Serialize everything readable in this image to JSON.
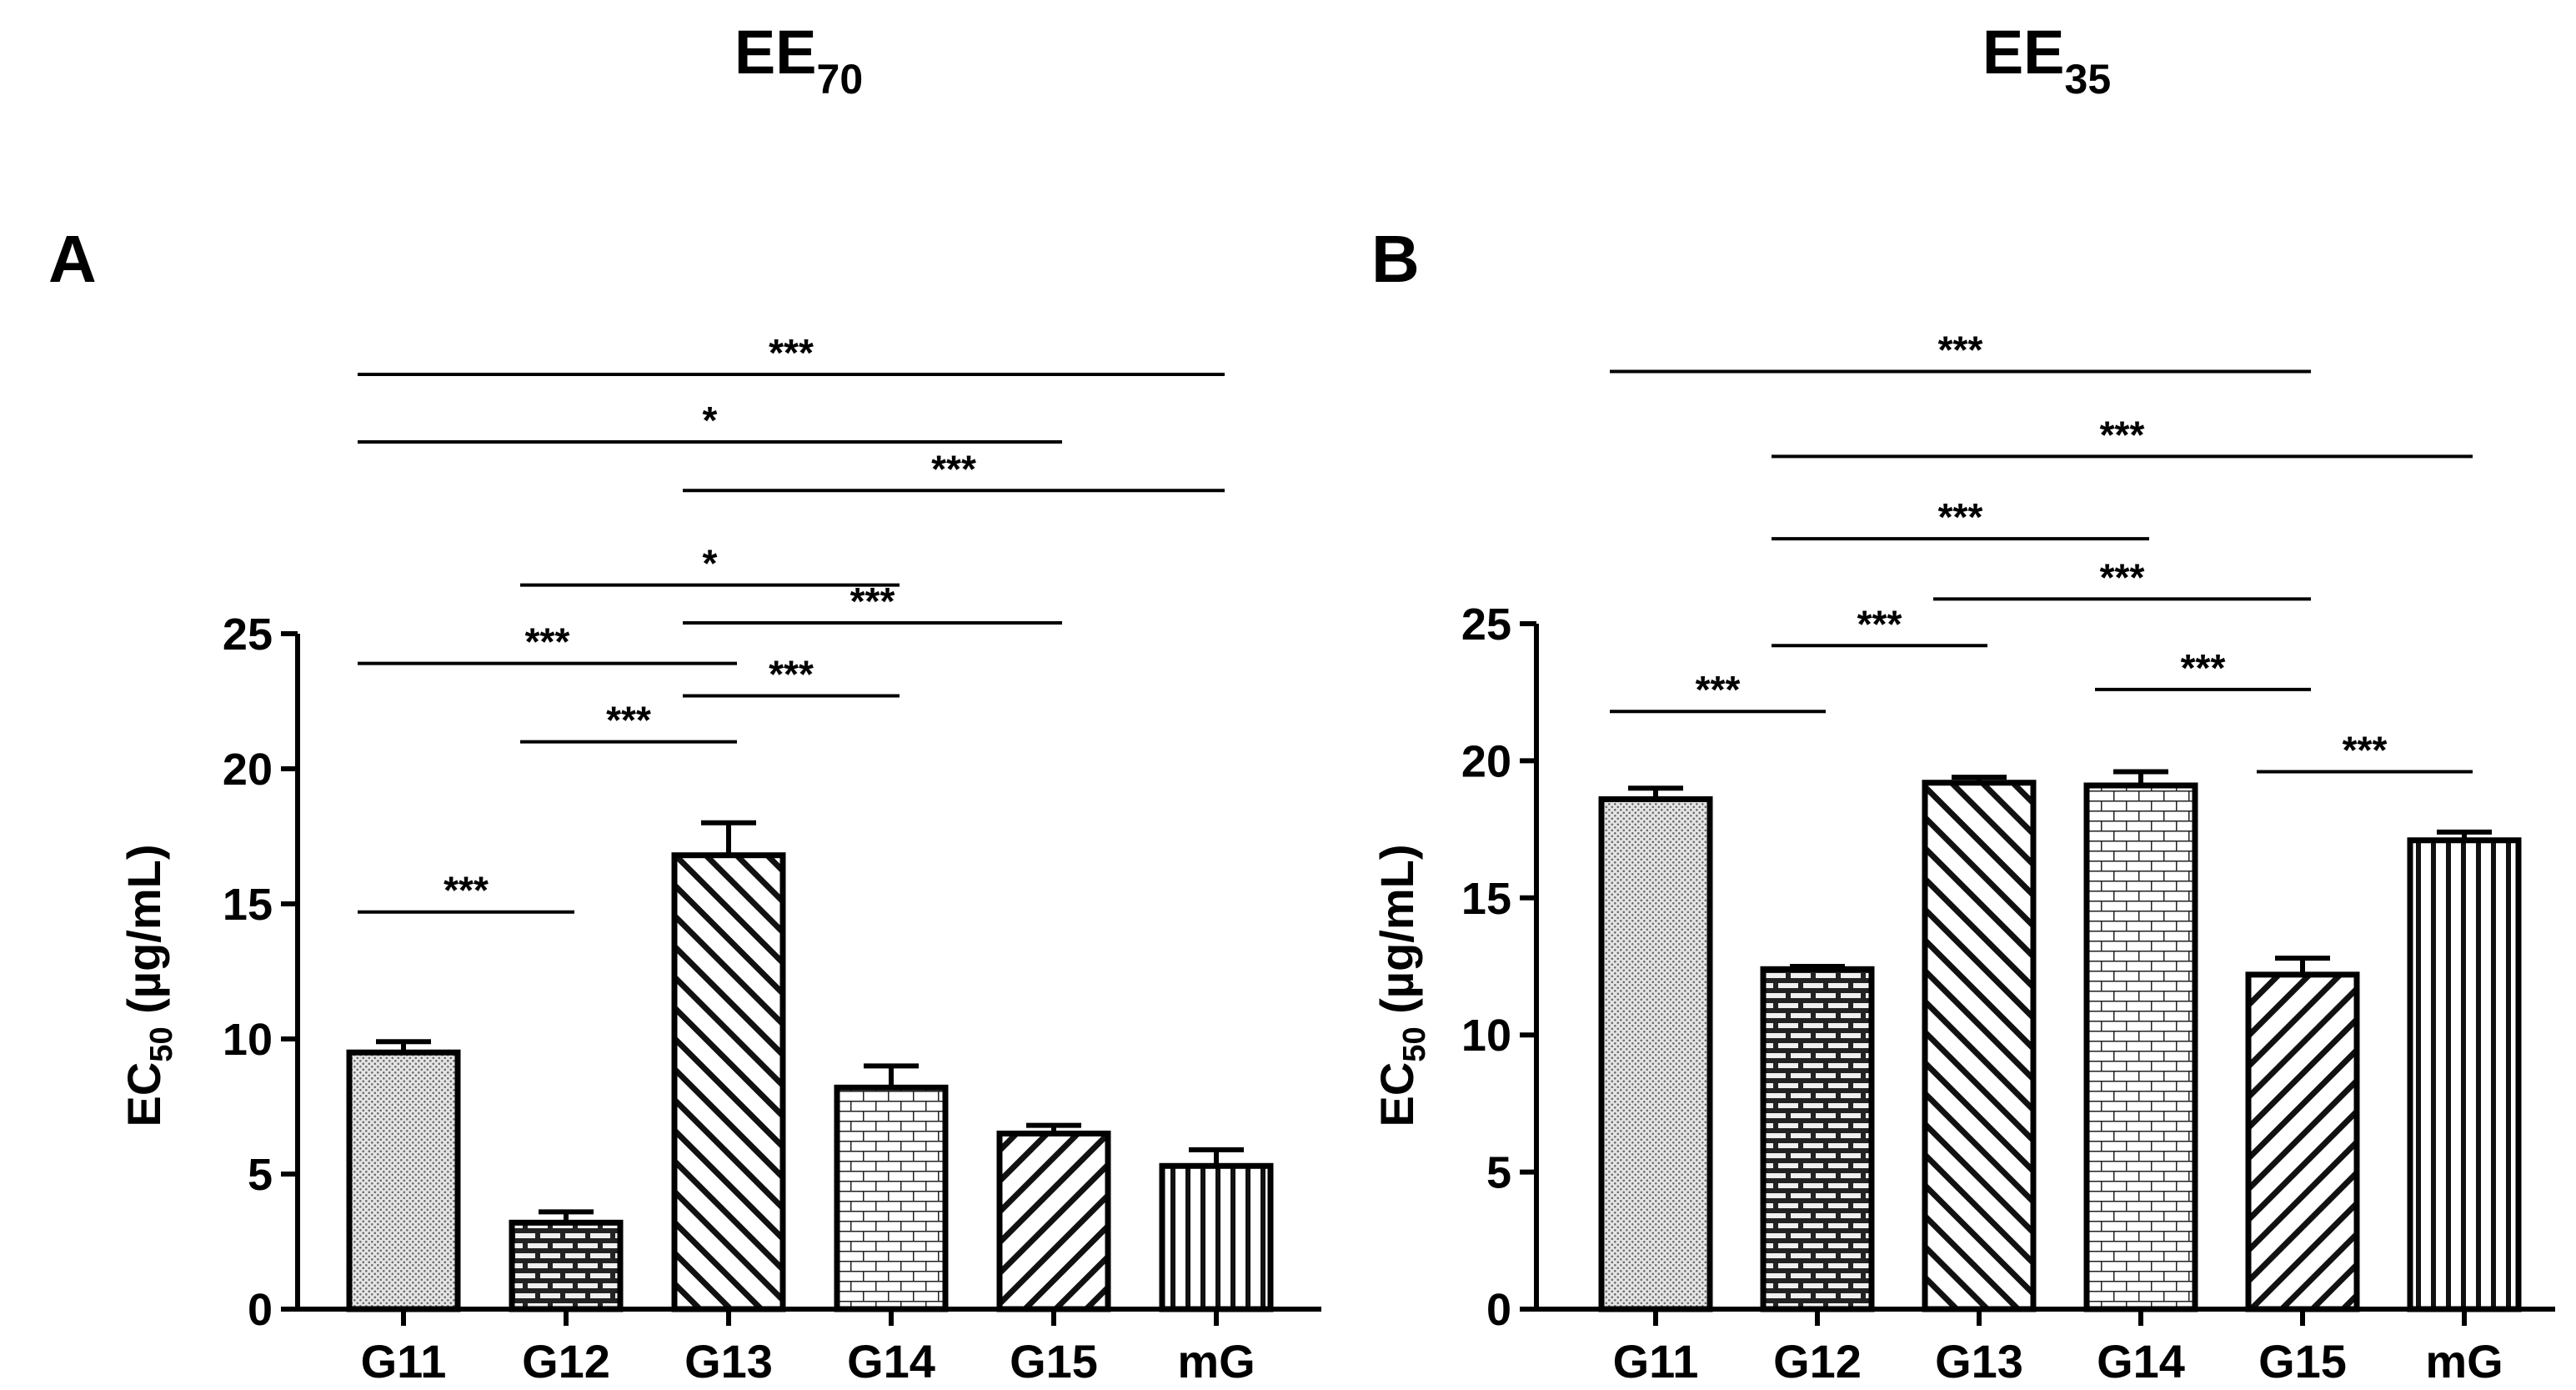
{
  "figure": {
    "headings": {
      "left_main": "EE",
      "left_sub": "70",
      "right_main": "EE",
      "right_sub": "35"
    }
  },
  "chart_data": [
    {
      "panel_label": "A",
      "type": "bar",
      "title": "EE70",
      "xlabel": "",
      "ylabel": "EC50 (µg/mL)",
      "ylabel_main": "EC",
      "ylabel_sub": "50",
      "ylabel_unit": " (µg/mL)",
      "ylim": [
        0,
        25
      ],
      "yticks": [
        0,
        5,
        10,
        15,
        20,
        25
      ],
      "categories": [
        "G11",
        "G12",
        "G13",
        "G14",
        "G15",
        "mG"
      ],
      "patterns": [
        "dots",
        "bricks-dark",
        "diag-back",
        "bricks-light",
        "diag-fwd",
        "vertical"
      ],
      "values": [
        9.5,
        3.2,
        16.8,
        8.2,
        6.5,
        5.3
      ],
      "errors": [
        0.4,
        0.4,
        1.2,
        0.8,
        0.3,
        0.6
      ],
      "significance": [
        {
          "from": "G11",
          "to": "G12",
          "label": "***",
          "level": 14.7
        },
        {
          "from": "G12",
          "to": "G13",
          "label": "***",
          "level": 21.0
        },
        {
          "from": "G13",
          "to": "G14",
          "label": "***",
          "level": 22.7
        },
        {
          "from": "G11",
          "to": "G13",
          "label": "***",
          "level": 23.9
        },
        {
          "from": "G13",
          "to": "G15",
          "label": "***",
          "level": 25.4
        },
        {
          "from": "G12",
          "to": "G14",
          "label": "*",
          "level": 26.8
        },
        {
          "from": "G13",
          "to": "mG",
          "label": "***",
          "level": 30.3
        },
        {
          "from": "G11",
          "to": "G15",
          "label": "*",
          "level": 32.1
        },
        {
          "from": "G11",
          "to": "mG",
          "label": "***",
          "level": 34.6
        }
      ]
    },
    {
      "panel_label": "B",
      "type": "bar",
      "title": "EE35",
      "xlabel": "",
      "ylabel": "EC50 (µg/mL)",
      "ylabel_main": "EC",
      "ylabel_sub": "50",
      "ylabel_unit": " (µg/mL)",
      "ylim": [
        0,
        25
      ],
      "yticks": [
        0,
        5,
        10,
        15,
        20,
        25
      ],
      "categories": [
        "G11",
        "G12",
        "G13",
        "G14",
        "G15",
        "mG"
      ],
      "patterns": [
        "dots",
        "bricks-dark",
        "diag-back",
        "bricks-light",
        "diag-fwd",
        "vertical"
      ],
      "values": [
        18.6,
        12.4,
        19.2,
        19.1,
        12.2,
        17.1
      ],
      "errors": [
        0.4,
        0.1,
        0.2,
        0.5,
        0.6,
        0.3
      ],
      "significance": [
        {
          "from": "G15",
          "to": "mG",
          "label": "***",
          "level": 19.6
        },
        {
          "from": "G11",
          "to": "G12",
          "label": "***",
          "level": 21.8
        },
        {
          "from": "G14",
          "to": "G15",
          "label": "***",
          "level": 22.6
        },
        {
          "from": "G12",
          "to": "G13",
          "label": "***",
          "level": 24.2
        },
        {
          "from": "G13",
          "to": "G15",
          "label": "***",
          "level": 25.9
        },
        {
          "from": "G12",
          "to": "G14",
          "label": "***",
          "level": 28.1
        },
        {
          "from": "G12",
          "to": "mG",
          "label": "***",
          "level": 31.1
        },
        {
          "from": "G11",
          "to": "G15",
          "label": "***",
          "level": 34.2
        }
      ]
    }
  ]
}
